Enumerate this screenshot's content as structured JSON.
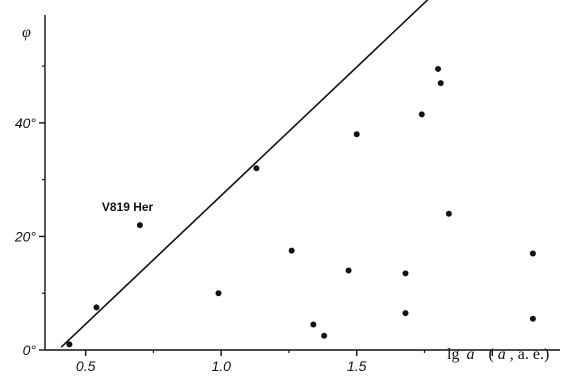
{
  "chart_data": {
    "type": "scatter",
    "title": "",
    "ylabel": "φ",
    "xlabel_parts": [
      "lg",
      "a",
      "(",
      "a",
      ", a. e.)"
    ],
    "xlim": [
      0.35,
      2.25
    ],
    "ylim": [
      0,
      59
    ],
    "x_ticks": [
      0.5,
      1.0,
      1.5
    ],
    "x_tick_labels": [
      "0.5",
      "1.0",
      "1.5"
    ],
    "y_ticks": [
      0,
      20,
      40
    ],
    "y_tick_labels": [
      "0°",
      "20°",
      "40°"
    ],
    "grid": false,
    "points": [
      {
        "x": 0.44,
        "y": 1
      },
      {
        "x": 0.54,
        "y": 7.5
      },
      {
        "x": 0.7,
        "y": 22
      },
      {
        "x": 0.99,
        "y": 10
      },
      {
        "x": 1.13,
        "y": 32
      },
      {
        "x": 1.26,
        "y": 17.5
      },
      {
        "x": 1.34,
        "y": 4.5
      },
      {
        "x": 1.38,
        "y": 2.5
      },
      {
        "x": 1.47,
        "y": 14
      },
      {
        "x": 1.5,
        "y": 38
      },
      {
        "x": 1.68,
        "y": 13.5
      },
      {
        "x": 1.68,
        "y": 6.5
      },
      {
        "x": 1.74,
        "y": 41.5
      },
      {
        "x": 1.8,
        "y": 49.5
      },
      {
        "x": 1.81,
        "y": 47
      },
      {
        "x": 1.84,
        "y": 24
      },
      {
        "x": 2.15,
        "y": 17
      },
      {
        "x": 2.15,
        "y": 5.5
      }
    ],
    "line": {
      "x": [
        0.41,
        1.78
      ],
      "y": [
        0.5,
        62.5
      ]
    },
    "annotations": [
      {
        "text": "V819 Her",
        "x": 0.7,
        "y": 22
      }
    ],
    "colors": {
      "ink": "#111111",
      "background": "#ffffff"
    }
  }
}
